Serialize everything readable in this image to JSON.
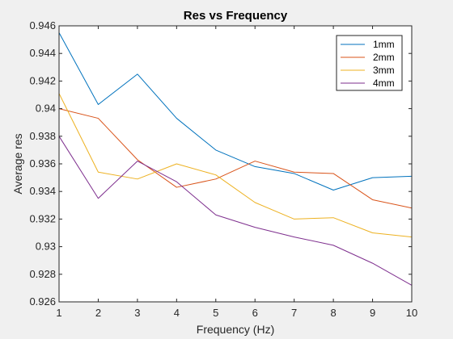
{
  "chart_data": {
    "type": "line",
    "title": "Res vs Frequency",
    "xlabel": "Frequency (Hz)",
    "ylabel": "Average res",
    "x": [
      1,
      2,
      3,
      4,
      5,
      6,
      7,
      8,
      9,
      10
    ],
    "xlim": [
      1,
      10
    ],
    "ylim": [
      0.926,
      0.946
    ],
    "xticks": [
      "1",
      "2",
      "3",
      "4",
      "5",
      "6",
      "7",
      "8",
      "9",
      "10"
    ],
    "yticks": [
      {
        "value": 0.926,
        "label": "0.926"
      },
      {
        "value": 0.928,
        "label": "0.928"
      },
      {
        "value": 0.93,
        "label": "0.93"
      },
      {
        "value": 0.932,
        "label": "0.932"
      },
      {
        "value": 0.934,
        "label": "0.934"
      },
      {
        "value": 0.936,
        "label": "0.936"
      },
      {
        "value": 0.938,
        "label": "0.938"
      },
      {
        "value": 0.94,
        "label": "0.94"
      },
      {
        "value": 0.942,
        "label": "0.942"
      },
      {
        "value": 0.944,
        "label": "0.944"
      },
      {
        "value": 0.946,
        "label": "0.946"
      }
    ],
    "grid": false,
    "legend_position": "top-right",
    "series": [
      {
        "name": "1mm",
        "color": "#0072BD",
        "values": [
          0.9455,
          0.9403,
          0.9425,
          0.9393,
          0.937,
          0.9358,
          0.9353,
          0.9341,
          0.935,
          0.9351
        ]
      },
      {
        "name": "2mm",
        "color": "#D95319",
        "values": [
          0.94,
          0.9393,
          0.9363,
          0.9343,
          0.9349,
          0.9362,
          0.9354,
          0.9353,
          0.9334,
          0.9328
        ]
      },
      {
        "name": "3mm",
        "color": "#EDB120",
        "values": [
          0.9411,
          0.9354,
          0.9349,
          0.936,
          0.9352,
          0.9332,
          0.932,
          0.9321,
          0.931,
          0.9307
        ]
      },
      {
        "name": "4mm",
        "color": "#7E2F8E",
        "values": [
          0.938,
          0.9335,
          0.9362,
          0.9347,
          0.9323,
          0.9314,
          0.9307,
          0.9301,
          0.9288,
          0.9272
        ]
      }
    ]
  }
}
